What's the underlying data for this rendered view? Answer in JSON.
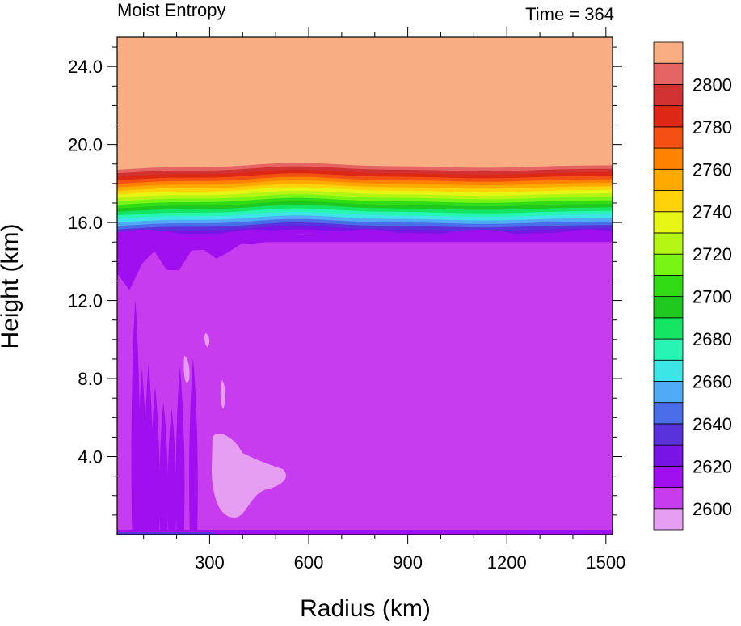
{
  "header": {
    "left_title": "Moist Entropy",
    "right_title": "Time = 364"
  },
  "chart_data": {
    "type": "contour",
    "xlabel": "Radius (km)",
    "ylabel": "Height (km)",
    "xlim": [
      20,
      1520
    ],
    "ylim": [
      0,
      25.5
    ],
    "x_ticks": [
      300,
      600,
      900,
      1200,
      1500
    ],
    "y_ticks": [
      4.0,
      8.0,
      12.0,
      16.0,
      20.0,
      24.0
    ],
    "y_tick_labels": [
      "4.0",
      "8.0",
      "12.0",
      "16.0",
      "20.0",
      "24.0"
    ],
    "colorbar": {
      "levels_labeled": [
        2600,
        2620,
        2640,
        2660,
        2680,
        2700,
        2720,
        2740,
        2760,
        2780,
        2800
      ],
      "level_step": 10,
      "colors": [
        "#e69ef2",
        "#c83cf0",
        "#a00ff0",
        "#7814e6",
        "#5a32dc",
        "#4a6ee8",
        "#50aaf5",
        "#3ce6e6",
        "#28f5b4",
        "#14e664",
        "#1ec81e",
        "#32dc14",
        "#78f514",
        "#b4f514",
        "#e6f514",
        "#ffd20a",
        "#ffaa00",
        "#ff8200",
        "#f55014",
        "#dc2814",
        "#d23232",
        "#e66464",
        "#f8ae82"
      ]
    },
    "fields": {
      "upper_level_value_range": [
        2800,
        2810
      ],
      "tropopause_transition_height_km": [
        15.5,
        19.0
      ],
      "mid_troposphere_value_range": [
        2610,
        2620
      ]
    }
  }
}
